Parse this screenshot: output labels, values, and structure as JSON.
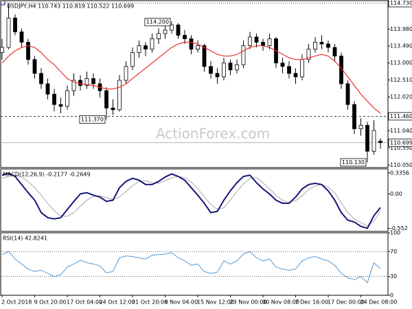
{
  "chart_data": [
    {
      "type": "candlestick",
      "title": "USDJPY,H4  110.743 110.819 110.522 110.699",
      "watermark": "ActionForex.com",
      "categories": [
        "2 Oct 2018",
        null,
        null,
        null,
        null,
        "9 Oct 20:00",
        null,
        null,
        null,
        null,
        "17 Oct 04:00",
        null,
        null,
        null,
        null,
        "24 Oct 12:00",
        null,
        null,
        null,
        null,
        "31 Oct 20:00",
        null,
        null,
        null,
        null,
        "8 Nov 04:00",
        null,
        null,
        null,
        null,
        "15 Nov 12:00",
        null,
        null,
        null,
        null,
        "23 Nov 00:00",
        null,
        null,
        null,
        null,
        "30 Nov 08:00",
        null,
        null,
        null,
        null,
        "7 Dec 16:00",
        null,
        null,
        null,
        null,
        "17 Dec 00:00",
        null,
        null,
        null,
        null,
        "24 Dec 08:00",
        null,
        null,
        null
      ],
      "candles": [
        [
          113.3,
          113.7,
          113.1,
          113.45
        ],
        [
          113.45,
          114.73,
          113.4,
          114.3
        ],
        [
          114.3,
          114.4,
          113.8,
          113.9
        ],
        [
          113.9,
          114.0,
          113.45,
          113.6
        ],
        [
          113.6,
          113.7,
          112.95,
          113.1
        ],
        [
          113.1,
          113.2,
          112.55,
          112.7
        ],
        [
          112.7,
          112.85,
          112.25,
          112.4
        ],
        [
          112.4,
          112.55,
          111.95,
          112.1
        ],
        [
          112.1,
          112.25,
          111.6,
          111.8
        ],
        [
          111.8,
          112.0,
          111.55,
          111.75
        ],
        [
          111.75,
          112.35,
          111.65,
          112.2
        ],
        [
          112.2,
          112.7,
          112.05,
          112.5
        ],
        [
          112.5,
          112.65,
          112.2,
          112.35
        ],
        [
          112.35,
          112.75,
          112.25,
          112.55
        ],
        [
          112.55,
          112.7,
          112.25,
          112.4
        ],
        [
          112.4,
          112.55,
          112.0,
          112.2
        ],
        [
          112.2,
          112.3,
          111.37,
          111.7
        ],
        [
          111.7,
          111.95,
          111.5,
          111.65
        ],
        [
          111.65,
          112.65,
          111.6,
          112.5
        ],
        [
          112.5,
          113.05,
          112.4,
          112.9
        ],
        [
          112.9,
          113.45,
          112.8,
          113.3
        ],
        [
          113.3,
          113.65,
          113.15,
          113.5
        ],
        [
          113.5,
          113.6,
          113.2,
          113.4
        ],
        [
          113.4,
          113.85,
          113.3,
          113.7
        ],
        [
          113.7,
          114.0,
          113.55,
          113.85
        ],
        [
          113.85,
          114.1,
          113.7,
          113.95
        ],
        [
          113.95,
          114.2,
          113.85,
          114.1
        ],
        [
          114.1,
          114.15,
          113.7,
          113.8
        ],
        [
          113.8,
          113.95,
          113.55,
          113.7
        ],
        [
          113.7,
          113.8,
          113.25,
          113.4
        ],
        [
          113.4,
          113.65,
          113.3,
          113.5
        ],
        [
          113.5,
          113.55,
          112.75,
          112.9
        ],
        [
          112.9,
          113.05,
          112.55,
          112.7
        ],
        [
          112.7,
          112.85,
          112.4,
          112.6
        ],
        [
          112.6,
          113.15,
          112.5,
          113.0
        ],
        [
          113.0,
          113.1,
          112.65,
          112.8
        ],
        [
          112.8,
          113.1,
          112.7,
          112.95
        ],
        [
          112.95,
          113.65,
          112.85,
          113.5
        ],
        [
          113.5,
          113.9,
          113.4,
          113.75
        ],
        [
          113.75,
          113.85,
          113.45,
          113.6
        ],
        [
          113.6,
          113.7,
          113.35,
          113.5
        ],
        [
          113.5,
          113.85,
          113.4,
          113.7
        ],
        [
          113.7,
          113.75,
          112.85,
          113.0
        ],
        [
          113.0,
          113.15,
          112.7,
          112.9
        ],
        [
          112.9,
          113.05,
          112.55,
          112.7
        ],
        [
          112.7,
          112.85,
          112.4,
          112.6
        ],
        [
          112.6,
          113.25,
          112.5,
          113.1
        ],
        [
          113.1,
          113.55,
          113.0,
          113.4
        ],
        [
          113.4,
          113.75,
          113.3,
          113.6
        ],
        [
          113.6,
          113.8,
          113.4,
          113.55
        ],
        [
          113.55,
          113.65,
          113.3,
          113.45
        ],
        [
          113.45,
          113.55,
          113.05,
          113.2
        ],
        [
          113.2,
          113.3,
          112.25,
          112.4
        ],
        [
          112.4,
          112.5,
          111.65,
          111.8
        ],
        [
          111.8,
          111.9,
          110.95,
          111.1
        ],
        [
          111.1,
          111.4,
          110.9,
          111.2
        ],
        [
          111.2,
          111.3,
          110.13,
          110.45
        ],
        [
          110.45,
          111.35,
          110.35,
          111.05
        ],
        [
          110.743,
          110.819,
          110.522,
          110.699
        ]
      ],
      "up_color": "#ffffff",
      "down_color": "#000000",
      "ma": {
        "color": "#e8302a",
        "values": [
          113.0,
          113.2,
          113.35,
          113.45,
          113.5,
          113.45,
          113.3,
          113.1,
          112.95,
          112.75,
          112.55,
          112.45,
          112.4,
          112.38,
          112.35,
          112.3,
          112.25,
          112.25,
          112.3,
          112.4,
          112.55,
          112.7,
          112.85,
          113.0,
          113.15,
          113.3,
          113.45,
          113.55,
          113.6,
          113.6,
          113.55,
          113.45,
          113.35,
          113.25,
          113.2,
          113.2,
          113.25,
          113.35,
          113.45,
          113.5,
          113.5,
          113.45,
          113.35,
          113.25,
          113.15,
          113.1,
          113.1,
          113.15,
          113.2,
          113.25,
          113.2,
          113.05,
          112.85,
          112.6,
          112.35,
          112.1,
          111.9,
          111.7,
          111.55
        ]
      },
      "ylim": [
        109.98,
        114.8
      ],
      "yticks": [
        {
          "value": 113.98,
          "label": "113.980"
        },
        {
          "value": 113.49,
          "label": "113.490"
        },
        {
          "value": 113,
          "label": "113.000"
        },
        {
          "value": 112.51,
          "label": "112.510"
        },
        {
          "value": 112.02,
          "label": "112.020"
        },
        {
          "value": 111.04,
          "label": "111.040"
        },
        {
          "value": 110.55,
          "label": "110.550"
        },
        {
          "value": 110.05,
          "label": "110.050"
        }
      ],
      "levels": [
        {
          "value": 114.73,
          "label": "114.730",
          "style": "dotted"
        },
        {
          "value": 111.46,
          "label": "111.460",
          "style": "dashed"
        },
        {
          "value": 110.699,
          "label": "110.699",
          "style": "solid"
        }
      ],
      "annotations": [
        {
          "value": 114.2,
          "label": "114.200",
          "kind": "high"
        },
        {
          "value": 111.37,
          "label": "111.370",
          "kind": "low"
        },
        {
          "value": 110.13,
          "label": "110.130",
          "kind": "low"
        }
      ]
    },
    {
      "type": "macd",
      "title": "MACD(12,26,9) -0.2177 -0.2649",
      "main": {
        "color": "#14147a",
        "values": [
          0.3,
          0.33,
          0.28,
          0.15,
          0.02,
          -0.1,
          -0.3,
          -0.38,
          -0.4,
          -0.38,
          -0.25,
          -0.12,
          0.0,
          0.02,
          -0.02,
          -0.05,
          -0.12,
          -0.1,
          0.1,
          0.2,
          0.25,
          0.22,
          0.15,
          0.15,
          0.2,
          0.27,
          0.32,
          0.28,
          0.22,
          0.1,
          -0.02,
          -0.15,
          -0.3,
          -0.28,
          -0.1,
          0.05,
          0.18,
          0.28,
          0.3,
          0.18,
          0.08,
          0.0,
          -0.1,
          -0.15,
          -0.15,
          -0.05,
          0.08,
          0.15,
          0.17,
          0.15,
          0.05,
          -0.1,
          -0.3,
          -0.42,
          -0.45,
          -0.52,
          -0.55,
          -0.35,
          -0.2177
        ]
      },
      "signal": {
        "color": "#a0a0a0",
        "values": [
          0.25,
          0.28,
          0.3,
          0.27,
          0.2,
          0.1,
          -0.02,
          -0.15,
          -0.27,
          -0.35,
          -0.36,
          -0.3,
          -0.2,
          -0.1,
          -0.04,
          -0.03,
          -0.06,
          -0.09,
          -0.05,
          0.04,
          0.13,
          0.2,
          0.21,
          0.18,
          0.17,
          0.21,
          0.26,
          0.28,
          0.26,
          0.19,
          0.08,
          -0.04,
          -0.17,
          -0.25,
          -0.22,
          -0.1,
          0.04,
          0.16,
          0.25,
          0.26,
          0.18,
          0.08,
          -0.02,
          -0.1,
          -0.13,
          -0.11,
          -0.03,
          0.07,
          0.13,
          0.15,
          0.11,
          0.02,
          -0.14,
          -0.3,
          -0.4,
          -0.46,
          -0.51,
          -0.44,
          -0.2649
        ]
      },
      "ylim": [
        -0.6,
        0.4
      ],
      "yticks": [
        0.3356,
        {
          "value": 0,
          "label": "0.00"
        },
        -0.552
      ]
    },
    {
      "type": "line",
      "title": "RSI(14) 42.8241",
      "color": "#3f8fd6",
      "values": [
        65,
        70,
        58,
        50,
        42,
        38,
        40,
        35,
        30,
        33,
        45,
        50,
        56,
        52,
        50,
        47,
        36,
        38,
        60,
        63,
        62,
        60,
        58,
        64,
        65,
        66,
        68,
        60,
        55,
        48,
        50,
        38,
        35,
        37,
        55,
        50,
        55,
        66,
        70,
        60,
        55,
        58,
        45,
        42,
        40,
        42,
        55,
        60,
        62,
        58,
        55,
        48,
        35,
        28,
        25,
        30,
        20,
        52,
        42.8241
      ],
      "ylim": [
        0,
        100
      ],
      "yticks": [
        100,
        70,
        30,
        0
      ],
      "grid": true
    }
  ]
}
